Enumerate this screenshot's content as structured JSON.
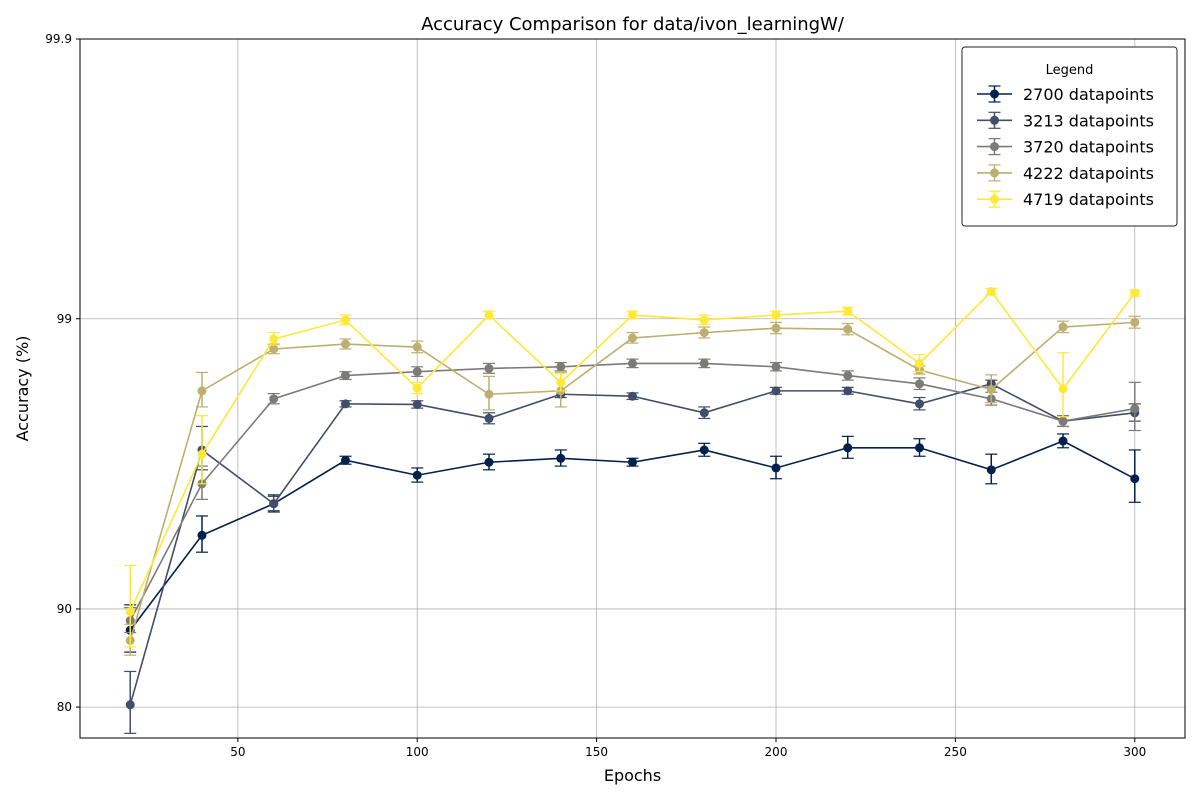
{
  "chart_data": {
    "type": "line",
    "title": "Accuracy Comparison for data/ivon_learningW/",
    "xlabel": "Epochs",
    "ylabel": "Accuracy (%)",
    "x_ticks": [
      50,
      100,
      150,
      200,
      250,
      300
    ],
    "y_ticks": [
      80,
      90,
      99,
      99.9
    ],
    "y_tick_labels": [
      "80",
      "90",
      "99",
      "99.9"
    ],
    "y_scale": "logit",
    "xlim": [
      6,
      314
    ],
    "ylim": [
      75.6,
      99.9
    ],
    "grid": true,
    "legend": {
      "title": "Legend",
      "placement": "top-right"
    },
    "x": [
      20,
      40,
      60,
      80,
      100,
      120,
      140,
      160,
      180,
      200,
      220,
      240,
      260,
      280,
      300
    ],
    "series": [
      {
        "name": "2700 datapoints",
        "color": "#00204d",
        "values": [
          88.3,
          94.3,
          95.55,
          96.85,
          96.45,
          96.8,
          96.9,
          96.8,
          97.1,
          96.65,
          97.15,
          97.15,
          96.6,
          97.3,
          96.35
        ],
        "errors": [
          2.0,
          0.8,
          0.3,
          0.1,
          0.2,
          0.2,
          0.2,
          0.1,
          0.15,
          0.3,
          0.25,
          0.2,
          0.4,
          0.15,
          0.75
        ]
      },
      {
        "name": "3213 datapoints",
        "color": "#414d6b",
        "values": [
          80.3,
          97.1,
          95.55,
          98.0,
          97.99,
          97.75,
          98.15,
          98.12,
          97.85,
          98.2,
          98.2,
          98.0,
          98.3,
          97.7,
          97.85
        ],
        "errors": [
          4.0,
          0.5,
          0.25,
          0.05,
          0.06,
          0.1,
          0.05,
          0.05,
          0.1,
          0.05,
          0.05,
          0.1,
          0.05,
          0.1,
          0.15
        ]
      },
      {
        "name": "3720 datapoints",
        "color": "#7c7b78",
        "values": [
          89.1,
          96.2,
          98.08,
          98.41,
          98.46,
          98.5,
          98.52,
          98.56,
          98.56,
          98.52,
          98.41,
          98.3,
          98.08,
          97.7,
          97.92
        ],
        "errors": [
          1.0,
          0.5,
          0.08,
          0.05,
          0.06,
          0.06,
          0.05,
          0.05,
          0.05,
          0.05,
          0.06,
          0.08,
          0.1,
          0.1,
          0.4
        ]
      },
      {
        "name": "4222 datapoints",
        "color": "#bcaf6f",
        "values": [
          87.4,
          98.2,
          98.72,
          98.77,
          98.74,
          98.15,
          98.2,
          98.83,
          98.88,
          98.92,
          98.91,
          98.48,
          98.22,
          98.93,
          98.97
        ],
        "errors": [
          1.4,
          0.25,
          0.05,
          0.05,
          0.06,
          0.25,
          0.25,
          0.05,
          0.05,
          0.05,
          0.05,
          0.05,
          0.2,
          0.05,
          0.05
        ]
      },
      {
        "name": "4719 datapoints",
        "color": "#fee838",
        "values": [
          89.8,
          97.0,
          98.82,
          98.99,
          98.24,
          99.03,
          98.32,
          99.03,
          98.99,
          99.03,
          99.06,
          98.56,
          99.2,
          98.23,
          99.19
        ],
        "errors": [
          3.0,
          0.8,
          0.06,
          0.04,
          0.08,
          0.03,
          0.12,
          0.03,
          0.04,
          0.03,
          0.03,
          0.1,
          0.02,
          0.45,
          0.02
        ]
      }
    ]
  }
}
